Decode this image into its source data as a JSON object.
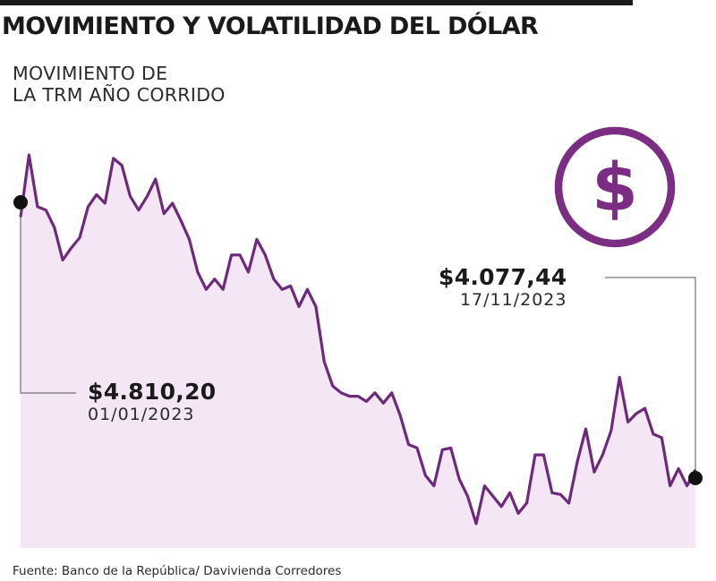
{
  "header": {
    "title": "MOVIMIENTO Y VOLATILIDAD DEL DÓLAR",
    "subtitle_line1": "MOVIMIENTO DE",
    "subtitle_line2": "LA TRM AÑO CORRIDO"
  },
  "icon": {
    "name": "dollar-icon",
    "color": "#7b2d83",
    "glyph": "$"
  },
  "callouts": {
    "start": {
      "value": "$4.810,20",
      "date": "01/01/2023"
    },
    "end": {
      "value": "$4.077,44",
      "date": "17/11/2023"
    }
  },
  "source": "Fuente: Banco de la República/ Davivienda Corredores",
  "colors": {
    "line": "#6e2a7a",
    "fill": "#f5e6f6",
    "accent": "#7b2d83"
  },
  "chart_data": {
    "type": "area",
    "title": "MOVIMIENTO DE LA TRM AÑO CORRIDO",
    "xlabel": "",
    "ylabel": "",
    "x_range": [
      "2023-01-01",
      "2023-11-17"
    ],
    "ylim": [
      3850,
      5050
    ],
    "grid": false,
    "series": [
      {
        "x": [
          "2023-01-01",
          "2023-01-05",
          "2023-01-09",
          "2023-01-13",
          "2023-01-17",
          "2023-01-21",
          "2023-01-25",
          "2023-01-29",
          "2023-02-02",
          "2023-02-06",
          "2023-02-10",
          "2023-02-14",
          "2023-02-18",
          "2023-02-22",
          "2023-02-26",
          "2023-03-02",
          "2023-03-06",
          "2023-03-10",
          "2023-03-14",
          "2023-03-18",
          "2023-03-22",
          "2023-03-26",
          "2023-03-30",
          "2023-04-03",
          "2023-04-07",
          "2023-04-11",
          "2023-04-15",
          "2023-04-19",
          "2023-04-23",
          "2023-04-27",
          "2023-05-01",
          "2023-05-05",
          "2023-05-09",
          "2023-05-13",
          "2023-05-17",
          "2023-05-21",
          "2023-05-25",
          "2023-05-29",
          "2023-06-02",
          "2023-06-06",
          "2023-06-10",
          "2023-06-14",
          "2023-06-18",
          "2023-06-22",
          "2023-06-26",
          "2023-06-30",
          "2023-07-04",
          "2023-07-08",
          "2023-07-12",
          "2023-07-16",
          "2023-07-20",
          "2023-07-24",
          "2023-07-28",
          "2023-08-01",
          "2023-08-05",
          "2023-08-09",
          "2023-08-13",
          "2023-08-17",
          "2023-08-21",
          "2023-08-25",
          "2023-08-29",
          "2023-09-02",
          "2023-09-06",
          "2023-09-10",
          "2023-09-14",
          "2023-09-18",
          "2023-09-22",
          "2023-09-26",
          "2023-09-30",
          "2023-10-04",
          "2023-10-08",
          "2023-10-12",
          "2023-10-16",
          "2023-10-20",
          "2023-10-24",
          "2023-10-28",
          "2023-11-01",
          "2023-11-05",
          "2023-11-09",
          "2023-11-13",
          "2023-11-17"
        ],
        "y": [
          4810,
          4990,
          4840,
          4830,
          4780,
          4685,
          4720,
          4750,
          4840,
          4875,
          4850,
          4980,
          4960,
          4870,
          4830,
          4870,
          4920,
          4820,
          4850,
          4800,
          4745,
          4650,
          4600,
          4630,
          4600,
          4700,
          4700,
          4650,
          4745,
          4700,
          4630,
          4600,
          4610,
          4550,
          4600,
          4550,
          4390,
          4320,
          4300,
          4290,
          4290,
          4275,
          4300,
          4270,
          4300,
          4235,
          4150,
          4140,
          4060,
          4030,
          4135,
          4140,
          4050,
          4000,
          3920,
          4030,
          4000,
          3970,
          4010,
          3950,
          3980,
          4120,
          4120,
          4010,
          4005,
          3980,
          4100,
          4195,
          4070,
          4120,
          4190,
          4345,
          4215,
          4240,
          4255,
          4180,
          4170,
          4030,
          4080,
          4030,
          4077
        ]
      }
    ]
  }
}
